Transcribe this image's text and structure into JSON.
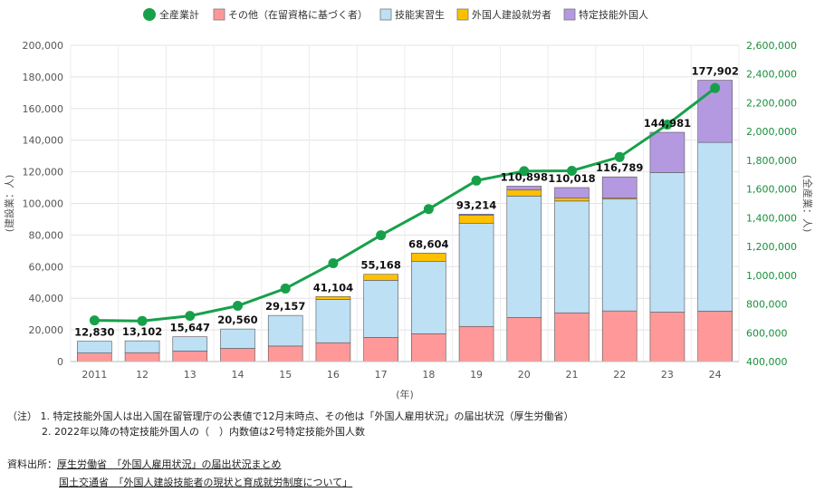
{
  "chart_data": {
    "type": "bar",
    "categories": [
      "2011",
      "12",
      "13",
      "14",
      "15",
      "16",
      "17",
      "18",
      "19",
      "20",
      "21",
      "22",
      "23",
      "24"
    ],
    "x_axis_label": "(年)",
    "y_left_label": "(建設業：人)",
    "y_right_label": "(全産業：人)",
    "y_left_range": [
      0,
      200000
    ],
    "y_right_range": [
      400000,
      2600000
    ],
    "y_left_ticks": [
      "0",
      "20,000",
      "40,000",
      "60,000",
      "80,000",
      "100,000",
      "120,000",
      "140,000",
      "160,000",
      "180,000",
      "200,000"
    ],
    "y_right_ticks": [
      "400,000",
      "600,000",
      "800,000",
      "1,000,000",
      "1,200,000",
      "1,400,000",
      "1,600,000",
      "1,800,000",
      "2,000,000",
      "2,200,000",
      "2,400,000",
      "2,600,000"
    ],
    "grid": true,
    "legend_position": "top",
    "series": [
      {
        "name": "その他（在留資格に基づく者）",
        "color": "#ff9999",
        "values": [
          5400,
          5600,
          6600,
          8300,
          9800,
          11900,
          15300,
          17600,
          22200,
          27800,
          30800,
          32000,
          31200,
          31800
        ]
      },
      {
        "name": "技能実習生",
        "color": "#bde0f5",
        "values": [
          7430,
          7502,
          9047,
          12260,
          19357,
          27404,
          36068,
          45618,
          65090,
          76850,
          70728,
          70731,
          88350,
          106800
        ]
      },
      {
        "name": "外国人建設就労者",
        "color": "#ffc000",
        "values": [
          0,
          0,
          0,
          0,
          0,
          1800,
          3800,
          5386,
          5200,
          3800,
          1800,
          600,
          0,
          0
        ]
      },
      {
        "name": "特定技能外国人",
        "color": "#b499e1",
        "values": [
          0,
          0,
          0,
          0,
          0,
          0,
          0,
          0,
          724,
          2448,
          6690,
          13458,
          25431,
          39302
        ]
      }
    ],
    "totals": [
      "12,830",
      "13,102",
      "15,647",
      "20,560",
      "29,157",
      "41,104",
      "55,168",
      "68,604",
      "93,214",
      "110,898",
      "110,018",
      "116,789",
      "144,981",
      "177,902"
    ],
    "line": {
      "name": "全産業計",
      "color": "#17a04a",
      "axis": "right",
      "values": [
        686246,
        682450,
        717504,
        787627,
        907896,
        1083769,
        1278670,
        1460463,
        1658804,
        1724328,
        1727221,
        1822725,
        2048675,
        2302587
      ]
    }
  },
  "notes": {
    "label": "（注）",
    "items": [
      {
        "num": "1.",
        "text": "特定技能外国人は出入国在留管理庁の公表値で12月末時点、その他は「外国人雇用状況」の届出状況（厚生労働省）"
      },
      {
        "num": "2.",
        "text": "2022年以降の特定技能外国人の（　）内数値は2号特定技能外国人数"
      }
    ]
  },
  "sources": {
    "label": "資料出所：",
    "line1": "厚生労働省　「外国人雇用状況」の届出状況まとめ",
    "line2": "国土交通省　「外国人建設技能者の現状と育成就労制度について」"
  }
}
